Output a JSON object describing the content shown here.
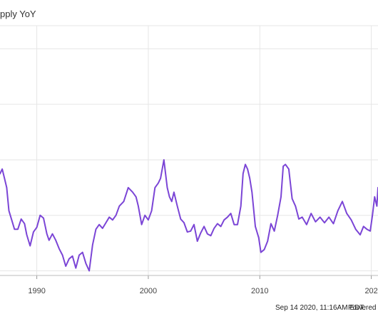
{
  "header": {
    "legend_label": "pply YoY",
    "accent_color": "#7b45d6"
  },
  "footer": {
    "timestamp": "Sep 14 2020, 11:16AM EDT.",
    "powered_by": "Powered by"
  },
  "chart_data": {
    "type": "line",
    "title": "",
    "xlabel": "",
    "ylabel": "",
    "x_tick_labels": [
      "1990",
      "2000",
      "2010",
      "202"
    ],
    "xlim": [
      1986.7,
      2020.6
    ],
    "ylim": [
      -2.5,
      24.5
    ],
    "grid": true,
    "series": [
      {
        "color": "#7b45d6",
        "x": [
          1986.7,
          1986.9,
          1987.1,
          1987.3,
          1987.5,
          1987.8,
          1988.0,
          1988.3,
          1988.6,
          1988.9,
          1989.1,
          1989.4,
          1989.7,
          1990.0,
          1990.3,
          1990.6,
          1990.9,
          1991.1,
          1991.4,
          1991.7,
          1992.0,
          1992.3,
          1992.6,
          1992.9,
          1993.2,
          1993.5,
          1993.8,
          1994.1,
          1994.4,
          1994.7,
          1995.0,
          1995.3,
          1995.6,
          1995.9,
          1996.2,
          1996.5,
          1996.8,
          1997.1,
          1997.4,
          1997.8,
          1998.2,
          1998.6,
          1998.9,
          1999.1,
          1999.4,
          1999.7,
          2000.0,
          2000.3,
          2000.6,
          2000.9,
          2001.1,
          2001.4,
          2001.7,
          2001.9,
          2002.1,
          2002.3,
          2002.6,
          2002.9,
          2003.2,
          2003.5,
          2003.8,
          2004.1,
          2004.4,
          2004.7,
          2005.0,
          2005.3,
          2005.6,
          2005.9,
          2006.2,
          2006.5,
          2006.8,
          2007.1,
          2007.4,
          2007.7,
          2008.0,
          2008.3,
          2008.5,
          2008.7,
          2008.9,
          2009.1,
          2009.3,
          2009.6,
          2009.9,
          2010.1,
          2010.4,
          2010.7,
          2011.0,
          2011.3,
          2011.6,
          2011.9,
          2012.1,
          2012.3,
          2012.6,
          2012.9,
          2013.2,
          2013.5,
          2013.8,
          2014.2,
          2014.6,
          2015.0,
          2015.4,
          2015.8,
          2016.2,
          2016.6,
          2017.0,
          2017.4,
          2017.8,
          2018.2,
          2018.6,
          2019.0,
          2019.3,
          2019.6,
          2019.9,
          2020.1,
          2020.3,
          2020.5,
          2020.6
        ],
        "y": [
          8.5,
          9.0,
          8.0,
          7.0,
          4.5,
          3.3,
          2.5,
          2.5,
          3.6,
          3.1,
          1.9,
          0.7,
          2.2,
          2.7,
          4.0,
          3.7,
          2.0,
          1.3,
          2.0,
          1.3,
          0.4,
          -0.3,
          -1.5,
          -0.7,
          -0.4,
          -1.7,
          -0.3,
          0.0,
          -1.2,
          -2.0,
          0.8,
          2.5,
          3.0,
          2.6,
          3.2,
          3.8,
          3.5,
          4.0,
          5.0,
          5.5,
          7.0,
          6.5,
          6.0,
          5.0,
          3.0,
          4.0,
          3.5,
          4.5,
          7.0,
          7.5,
          8.0,
          10.0,
          7.0,
          6.0,
          5.5,
          6.5,
          5.0,
          3.6,
          3.2,
          2.2,
          2.3,
          3.0,
          1.2,
          2.1,
          2.8,
          2.0,
          1.8,
          2.6,
          3.1,
          2.8,
          3.5,
          3.8,
          4.2,
          3.0,
          3.0,
          5.0,
          8.5,
          9.5,
          9.0,
          8.0,
          6.5,
          2.8,
          1.6,
          0.0,
          0.3,
          1.2,
          3.1,
          2.3,
          4.0,
          6.0,
          9.3,
          9.5,
          9.0,
          5.8,
          5.0,
          3.6,
          3.8,
          3.0,
          4.2,
          3.3,
          3.8,
          3.2,
          3.8,
          3.1,
          4.5,
          5.5,
          4.2,
          3.5,
          2.5,
          1.9,
          2.8,
          2.5,
          2.3,
          4.0,
          6.0,
          5.0,
          7.0
        ]
      }
    ]
  }
}
